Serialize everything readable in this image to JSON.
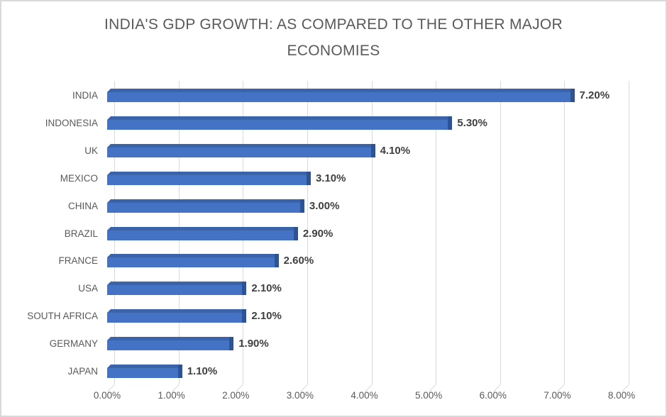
{
  "chart": {
    "title_lines": [
      "INDIA'S GDP GROWTH: AS COMPARED TO THE OTHER MAJOR",
      "ECONOMIES"
    ]
  },
  "chart_data": {
    "type": "bar",
    "orientation": "horizontal",
    "style": "3d-bar",
    "title": "INDIA'S GDP GROWTH: AS COMPARED TO THE OTHER MAJOR ECONOMIES",
    "categories": [
      "INDIA",
      "INDONESIA",
      "UK",
      "MEXICO",
      "CHINA",
      "BRAZIL",
      "FRANCE",
      "USA",
      "SOUTH AFRICA",
      "GERMANY",
      "JAPAN"
    ],
    "values": [
      7.2,
      5.3,
      4.1,
      3.1,
      3.0,
      2.9,
      2.6,
      2.1,
      2.1,
      1.9,
      1.1
    ],
    "data_labels": [
      "7.20%",
      "5.30%",
      "4.10%",
      "3.10%",
      "3.00%",
      "2.90%",
      "2.60%",
      "2.10%",
      "2.10%",
      "1.90%",
      "1.10%"
    ],
    "x_ticks": [
      "0.00%",
      "1.00%",
      "2.00%",
      "3.00%",
      "4.00%",
      "5.00%",
      "6.00%",
      "7.00%",
      "8.00%"
    ],
    "x_tick_values": [
      0,
      1,
      2,
      3,
      4,
      5,
      6,
      7,
      8
    ],
    "xlim": [
      0,
      8
    ],
    "xlabel": "",
    "ylabel": "",
    "grid": true,
    "legend": false,
    "colors": {
      "bar_front": "#4472C4",
      "bar_top": "#3A63A9",
      "bar_side": "#2E5394",
      "gridline": "#D9D9D9",
      "axis_text": "#595959",
      "value_text": "#404040",
      "title_text": "#595959"
    }
  }
}
